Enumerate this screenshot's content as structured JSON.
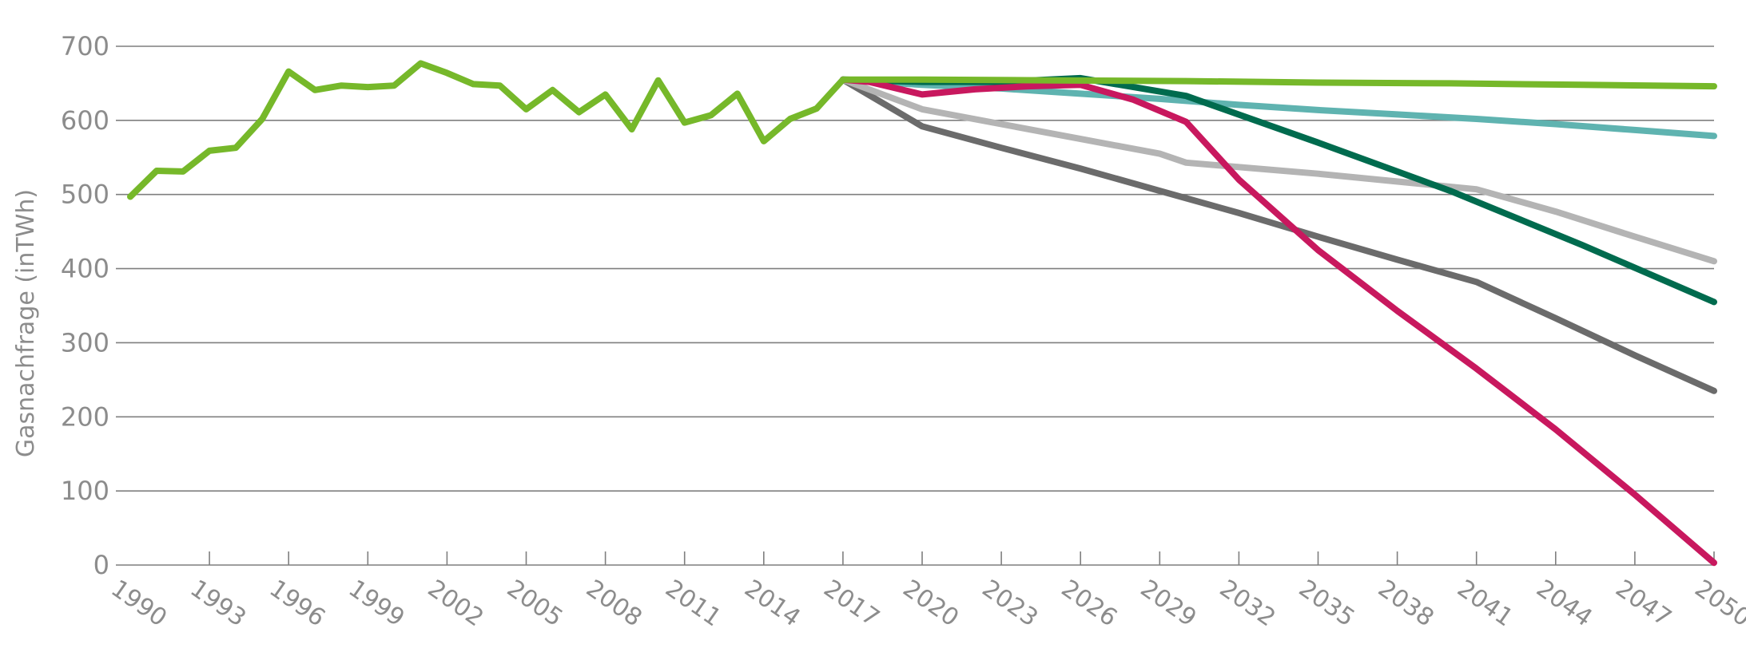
{
  "chart_data": {
    "type": "line",
    "title": "",
    "xlabel": "",
    "ylabel": "Gasnachfrage (inTWh)",
    "xlim": [
      1990,
      2050
    ],
    "ylim": [
      0,
      700
    ],
    "yticks": [
      0,
      100,
      200,
      300,
      400,
      500,
      600,
      700
    ],
    "xticks": [
      1990,
      1993,
      1996,
      1999,
      2002,
      2005,
      2008,
      2011,
      2014,
      2017,
      2020,
      2023,
      2026,
      2029,
      2032,
      2035,
      2038,
      2041,
      2044,
      2047,
      2050
    ],
    "grid": true,
    "legend": "none",
    "series": [
      {
        "color": "#6b6b6b",
        "x": [
          2017,
          2020,
          2023,
          2026,
          2029,
          2032,
          2035,
          2038,
          2041,
          2044,
          2047,
          2050
        ],
        "y": [
          655,
          592,
          563,
          535,
          505,
          475,
          443,
          412,
          382,
          333,
          283,
          235
        ]
      },
      {
        "color": "#b4b4b4",
        "x": [
          2017,
          2020,
          2023,
          2026,
          2029,
          2030,
          2035,
          2041,
          2044,
          2047,
          2050
        ],
        "y": [
          655,
          615,
          595,
          575,
          555,
          543,
          528,
          507,
          477,
          443,
          410
        ]
      },
      {
        "color": "#5fb3b0",
        "x": [
          2017,
          2020,
          2023,
          2026,
          2029,
          2032,
          2035,
          2038,
          2041,
          2044,
          2047,
          2050
        ],
        "y": [
          655,
          648,
          643,
          636,
          629,
          621,
          614,
          608,
          602,
          595,
          587,
          579
        ]
      },
      {
        "color": "#006b4e",
        "x": [
          2017,
          2020,
          2023,
          2026,
          2030,
          2035,
          2040,
          2045,
          2050
        ],
        "y": [
          655,
          652,
          652,
          657,
          633,
          570,
          505,
          432,
          355
        ]
      },
      {
        "color": "#c8185e",
        "x": [
          2017,
          2018,
          2020,
          2022,
          2024,
          2026,
          2028,
          2030,
          2032,
          2035,
          2038,
          2041,
          2044,
          2047,
          2050
        ],
        "y": [
          655,
          652,
          635,
          642,
          646,
          648,
          628,
          598,
          520,
          425,
          343,
          265,
          183,
          95,
          3
        ]
      },
      {
        "color": "#76b82a",
        "x": [
          1990,
          1991,
          1992,
          1993,
          1994,
          1995,
          1996,
          1997,
          1998,
          1999,
          2000,
          2001,
          2002,
          2003,
          2004,
          2005,
          2006,
          2007,
          2008,
          2009,
          2010,
          2011,
          2012,
          2013,
          2014,
          2015,
          2016,
          2017,
          2020,
          2025,
          2030,
          2035,
          2040,
          2045,
          2050
        ],
        "y": [
          497,
          532,
          531,
          559,
          563,
          602,
          666,
          641,
          647,
          645,
          647,
          677,
          664,
          649,
          647,
          615,
          641,
          611,
          635,
          588,
          654,
          597,
          607,
          636,
          572,
          602,
          616,
          655,
          655,
          654,
          653,
          651,
          650,
          648,
          646
        ]
      }
    ]
  }
}
